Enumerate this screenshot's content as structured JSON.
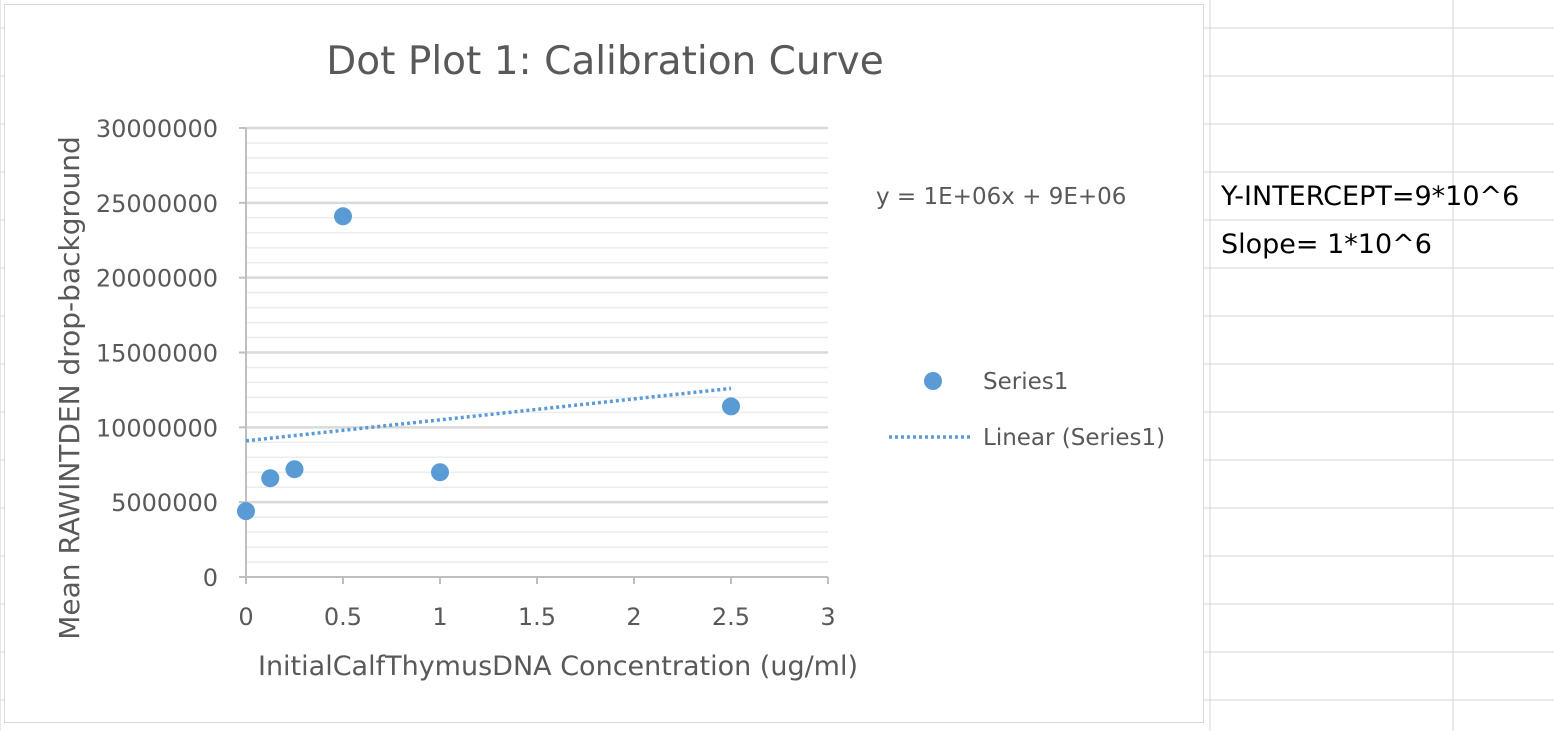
{
  "spreadsheet": {
    "cells": {
      "y_intercept": "Y-INTERCEPT=9*10^6",
      "slope": "Slope= 1*10^6"
    }
  },
  "chart_data": {
    "type": "scatter",
    "title": "Dot Plot 1: Calibration Curve",
    "xlabel": "InitialCalfThymusDNA Concentration (ug/ml)",
    "ylabel": "Mean RAWINTDEN drop-background",
    "xlim": [
      0,
      3
    ],
    "ylim": [
      0,
      30000000
    ],
    "x_ticks": [
      0,
      0.5,
      1,
      1.5,
      2,
      2.5,
      3
    ],
    "x_tick_labels": [
      "0",
      "0.5",
      "1",
      "1.5",
      "2",
      "2.5",
      "3"
    ],
    "y_ticks": [
      0,
      5000000,
      10000000,
      15000000,
      20000000,
      25000000,
      30000000
    ],
    "y_tick_labels": [
      "0",
      "5000000",
      "10000000",
      "15000000",
      "20000000",
      "25000000",
      "30000000"
    ],
    "grid": true,
    "series": [
      {
        "name": "Series1",
        "color": "#5b9bd5",
        "x": [
          0,
          0.125,
          0.25,
          0.5,
          1,
          2.5
        ],
        "y": [
          4400000,
          6600000,
          7200000,
          24100000,
          7000000,
          11400000
        ]
      }
    ],
    "trendline": {
      "name": "Linear (Series1)",
      "type": "linear",
      "slope": 1400000,
      "intercept": 9100000,
      "x_range": [
        0,
        2.5
      ],
      "equation": "y = 1E+06x + 9E+06",
      "color": "#5b9bd5"
    },
    "legend": {
      "position": "right",
      "entries": [
        "Series1",
        "Linear (Series1)"
      ]
    }
  }
}
